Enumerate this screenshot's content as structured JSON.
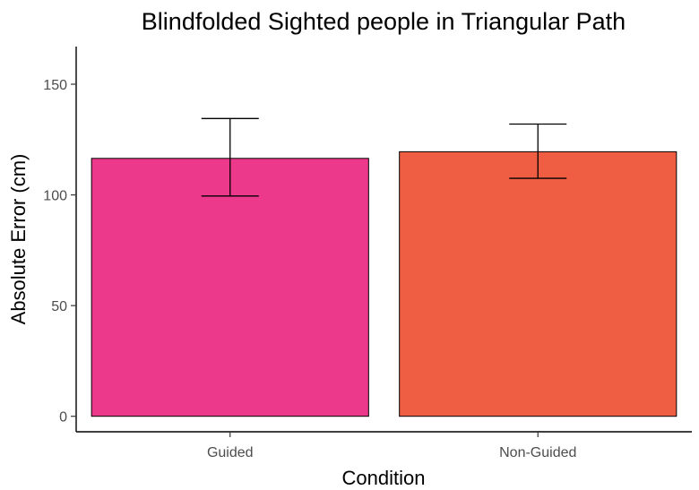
{
  "chart_data": {
    "type": "bar",
    "title": "Blindfolded Sighted people in Triangular Path",
    "xlabel": "Condition",
    "ylabel": "Absolute Error (cm)",
    "categories": [
      "Guided",
      "Non-Guided"
    ],
    "values": [
      116.5,
      119.5
    ],
    "error_low": [
      99.5,
      107.5
    ],
    "error_high": [
      134.5,
      132
    ],
    "colors": [
      "#EC398B",
      "#EF5E43"
    ],
    "ylim": [
      -7,
      167
    ],
    "yticks": [
      0,
      50,
      100,
      150
    ],
    "grid": false,
    "legend": "none"
  }
}
